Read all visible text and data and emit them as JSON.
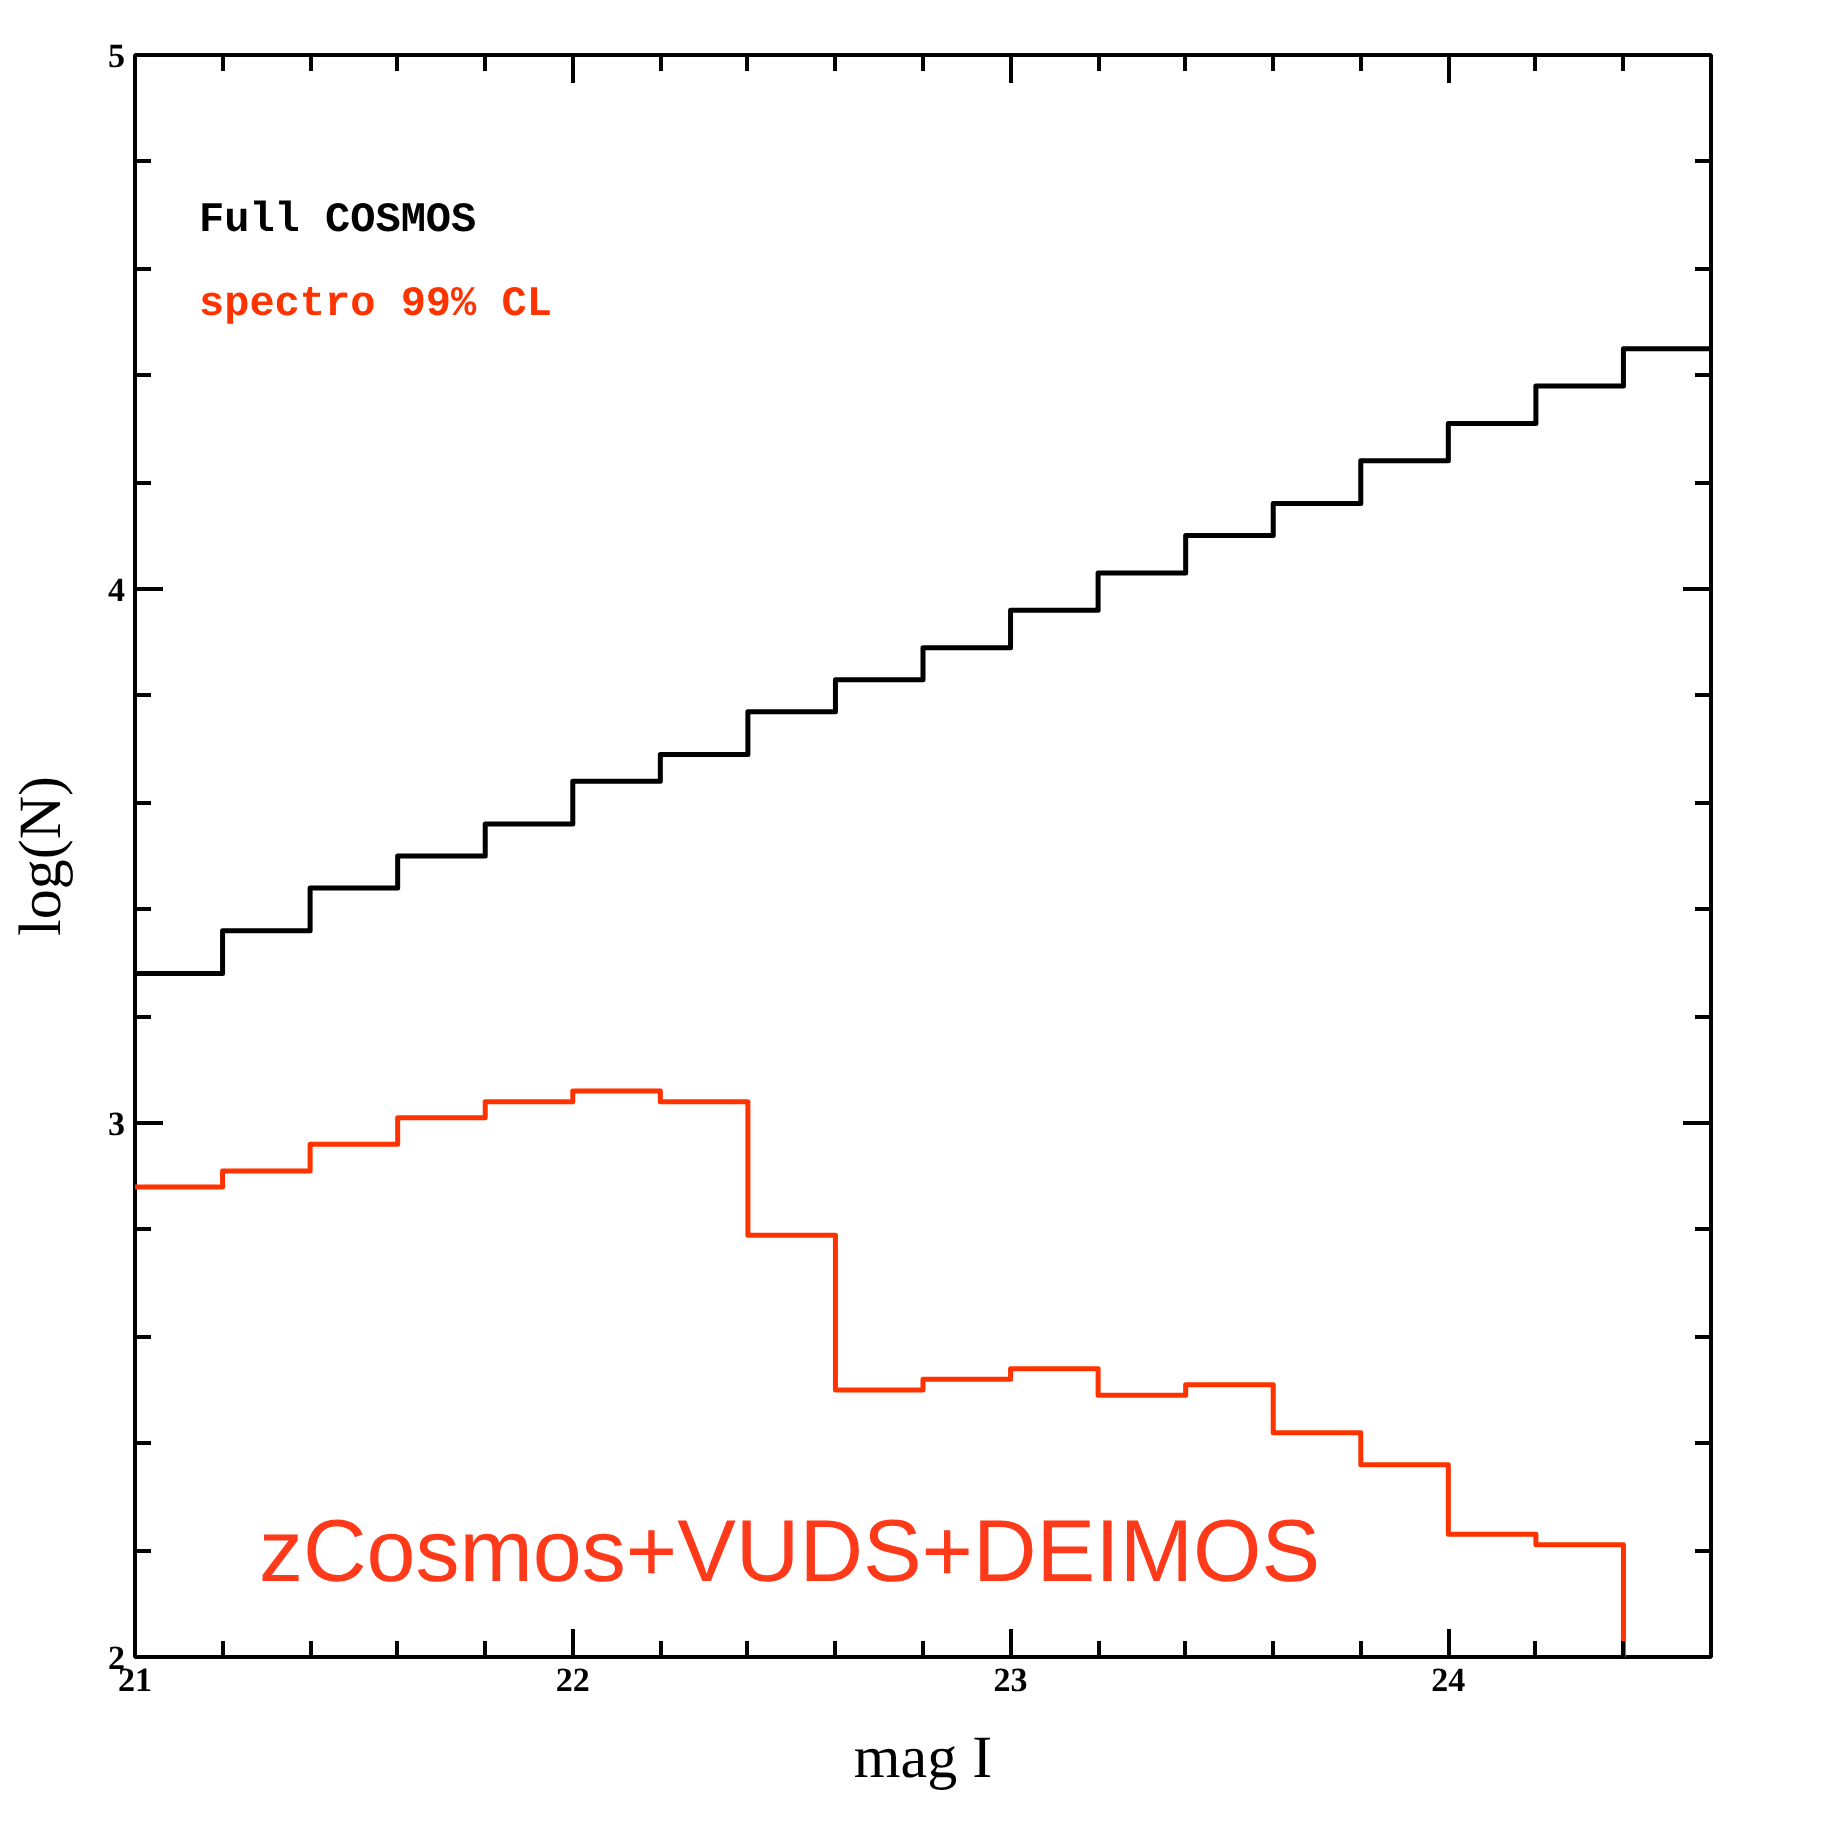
{
  "chart_data": {
    "type": "histogram",
    "bins": [
      21.0,
      21.2,
      21.4,
      21.6,
      21.8,
      22.0,
      22.2,
      22.4,
      22.6,
      22.8,
      23.0,
      23.2,
      23.4,
      23.6,
      23.8,
      24.0,
      24.2,
      24.4,
      24.6
    ],
    "series": [
      {
        "name": "Full COSMOS",
        "color": "#000000",
        "values": [
          3.28,
          3.36,
          3.44,
          3.5,
          3.56,
          3.64,
          3.69,
          3.77,
          3.83,
          3.89,
          3.96,
          4.03,
          4.1,
          4.16,
          4.24,
          4.31,
          4.38,
          4.45
        ]
      },
      {
        "name": "spectro 99% CL",
        "color": "#ff3300",
        "bins": [
          21.0,
          21.2,
          21.4,
          21.6,
          21.8,
          22.0,
          22.2,
          22.4,
          22.6,
          22.8,
          23.0,
          23.2,
          23.4,
          23.6,
          23.8,
          24.0,
          24.2,
          24.4
        ],
        "values": [
          2.88,
          2.91,
          2.96,
          3.01,
          3.04,
          3.06,
          3.04,
          2.79,
          2.5,
          2.52,
          2.54,
          2.49,
          2.51,
          2.42,
          2.36,
          2.23,
          2.21
        ]
      }
    ],
    "xlabel": "mag I",
    "ylabel": "log(N)",
    "xlim": [
      21,
      24.6
    ],
    "ylim": [
      2,
      5
    ],
    "xticks": [
      21,
      22,
      23,
      24
    ],
    "yticks": [
      2,
      3,
      4,
      5
    ],
    "annotations": [
      "zCosmos+VUDS+DEIMOS"
    ],
    "legend": "top left",
    "grid": false
  }
}
